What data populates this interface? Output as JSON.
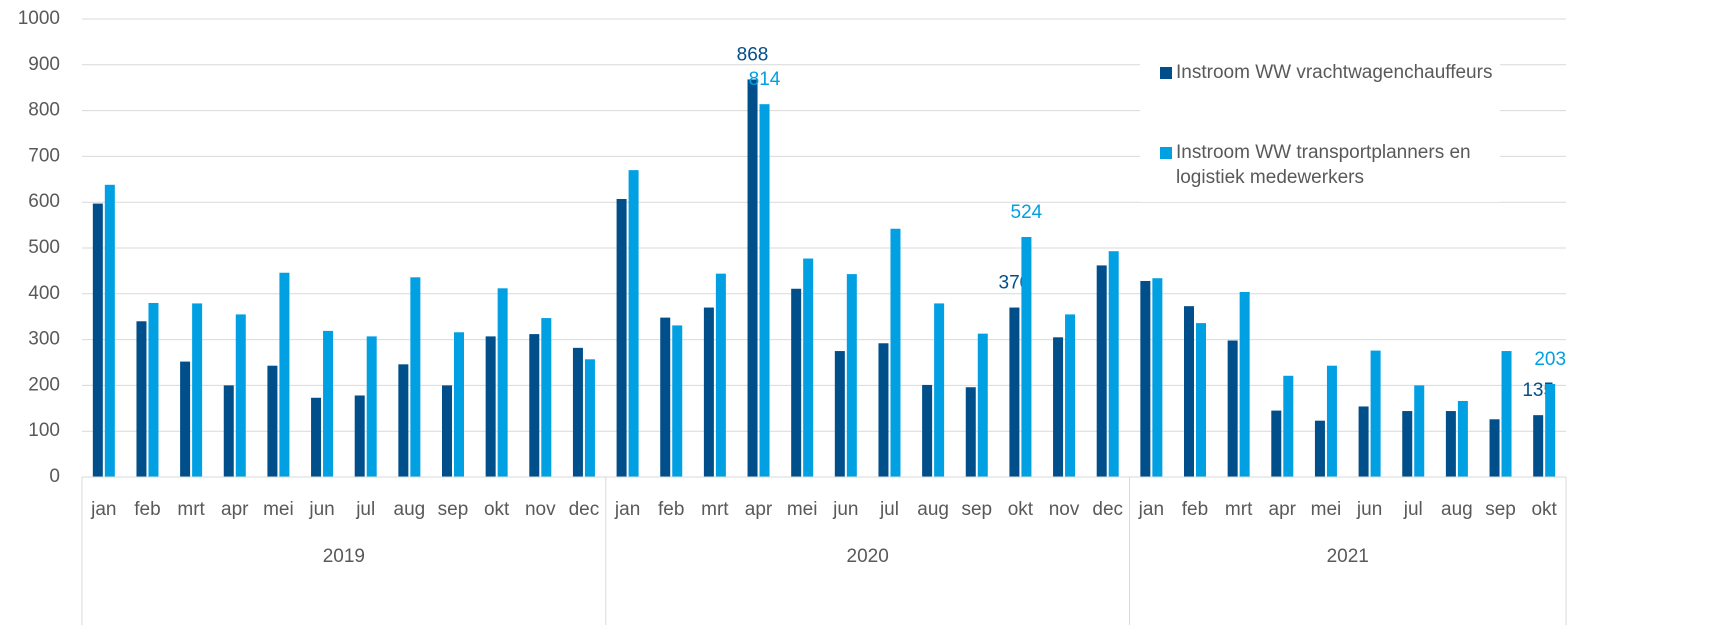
{
  "chart_data": {
    "type": "bar",
    "groups": [
      {
        "name": "2019",
        "categories": [
          "jan",
          "feb",
          "mrt",
          "apr",
          "mei",
          "jun",
          "jul",
          "aug",
          "sep",
          "okt",
          "nov",
          "dec"
        ]
      },
      {
        "name": "2020",
        "categories": [
          "jan",
          "feb",
          "mrt",
          "apr",
          "mei",
          "jun",
          "jul",
          "aug",
          "sep",
          "okt",
          "nov",
          "dec"
        ]
      },
      {
        "name": "2021",
        "categories": [
          "jan",
          "feb",
          "mrt",
          "apr",
          "mei",
          "jun",
          "jul",
          "aug",
          "sep",
          "okt"
        ]
      }
    ],
    "series": [
      {
        "name": "Instroom WW vrachtwagenchauffeurs",
        "color": "#004f8a",
        "values": [
          597,
          340,
          252,
          200,
          243,
          173,
          178,
          246,
          200,
          307,
          312,
          282,
          607,
          348,
          370,
          868,
          411,
          275,
          292,
          201,
          196,
          370,
          305,
          462,
          428,
          373,
          298,
          145,
          123,
          154,
          144,
          144,
          126,
          135
        ],
        "value_labels": [
          null,
          null,
          null,
          null,
          null,
          null,
          null,
          null,
          null,
          null,
          null,
          null,
          null,
          null,
          null,
          "868",
          null,
          null,
          null,
          null,
          null,
          "370",
          null,
          null,
          null,
          null,
          null,
          null,
          null,
          null,
          null,
          null,
          null,
          "135"
        ]
      },
      {
        "name": "Instroom WW transportplanners en logistiek medewerkers",
        "color": "#00a0e3",
        "values": [
          638,
          380,
          379,
          355,
          446,
          319,
          307,
          436,
          316,
          412,
          347,
          257,
          670,
          331,
          444,
          814,
          477,
          443,
          542,
          379,
          313,
          524,
          355,
          493,
          434,
          336,
          404,
          221,
          243,
          276,
          200,
          166,
          275,
          203
        ],
        "value_labels": [
          null,
          null,
          null,
          null,
          null,
          null,
          null,
          null,
          null,
          null,
          null,
          null,
          null,
          null,
          null,
          "814",
          null,
          null,
          null,
          null,
          null,
          "524",
          null,
          null,
          null,
          null,
          null,
          null,
          null,
          null,
          null,
          null,
          null,
          "203"
        ]
      }
    ],
    "ylim": [
      0,
      1000
    ],
    "yticks": [
      0,
      100,
      200,
      300,
      400,
      500,
      600,
      700,
      800,
      900,
      1000
    ],
    "grid": true,
    "legend": "top-right"
  }
}
